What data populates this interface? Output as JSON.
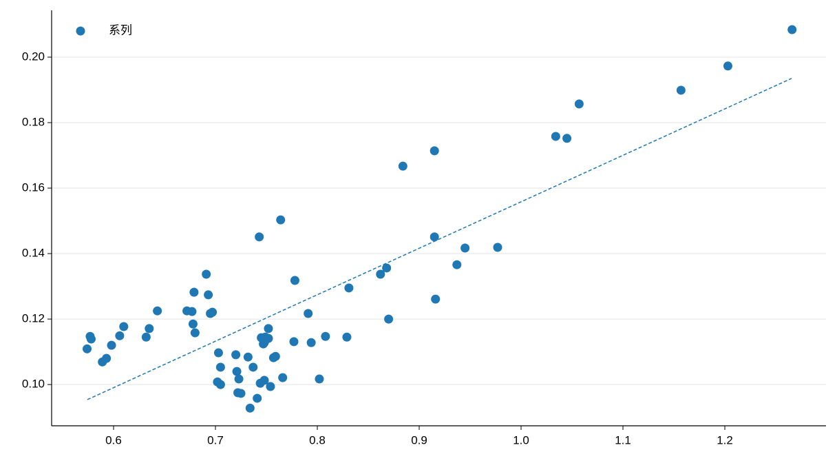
{
  "chart_data": {
    "type": "scatter",
    "series": [
      {
        "name": "系列",
        "color": "#1f77b4",
        "x": [
          0.574,
          0.577,
          0.578,
          0.589,
          0.593,
          0.598,
          0.606,
          0.61,
          0.632,
          0.635,
          0.643,
          0.672,
          0.677,
          0.678,
          0.679,
          0.68,
          0.691,
          0.693,
          0.695,
          0.697,
          0.703,
          0.702,
          0.705,
          0.705,
          0.72,
          0.721,
          0.723,
          0.722,
          0.725,
          0.732,
          0.734,
          0.737,
          0.741,
          0.743,
          0.744,
          0.745,
          0.747,
          0.748,
          0.748,
          0.749,
          0.752,
          0.752,
          0.754,
          0.757,
          0.759,
          0.764,
          0.766,
          0.778,
          0.777,
          0.791,
          0.794,
          0.802,
          0.808,
          0.829,
          0.831,
          0.862,
          0.868,
          0.87,
          0.884,
          0.915,
          0.915,
          0.916,
          0.937,
          0.945,
          0.977,
          1.034,
          1.045,
          1.057,
          1.157,
          1.203,
          1.266
        ],
        "values": [
          0.1109,
          0.1147,
          0.1139,
          0.1069,
          0.108,
          0.112,
          0.1149,
          0.1177,
          0.1145,
          0.1171,
          0.1225,
          0.1225,
          0.1223,
          0.1185,
          0.1282,
          0.1158,
          0.1337,
          0.1274,
          0.1217,
          0.1221,
          0.1097,
          0.1008,
          0.1053,
          0.1,
          0.1091,
          0.104,
          0.1017,
          0.0975,
          0.0973,
          0.1084,
          0.0928,
          0.1053,
          0.0958,
          0.1451,
          0.1004,
          0.1143,
          0.1124,
          0.1128,
          0.1013,
          0.1145,
          0.1141,
          0.1171,
          0.0994,
          0.1082,
          0.1086,
          0.1503,
          0.1021,
          0.1318,
          0.1131,
          0.1217,
          0.1128,
          0.1017,
          0.1147,
          0.1145,
          0.1295,
          0.1337,
          0.1356,
          0.12,
          0.1667,
          0.1714,
          0.1451,
          0.1261,
          0.1366,
          0.1417,
          0.1419,
          0.1758,
          0.1752,
          0.1857,
          0.1899,
          0.1973,
          0.2084
        ]
      }
    ],
    "trendline": {
      "x": [
        0.5743,
        1.2655
      ],
      "values": [
        0.0954,
        0.1935
      ],
      "color": "#1f77b4"
    },
    "xlim": [
      0.5392,
      1.2993
    ],
    "ylim": [
      0.0874,
      0.2143
    ],
    "xticks": [
      0.6,
      0.7,
      0.8,
      0.9,
      {
        "value": 1.0,
        "label": "1.0"
      },
      1.1,
      1.2
    ],
    "yticks": [
      {
        "value": 0.1,
        "label": "0.10"
      },
      {
        "value": 0.12,
        "label": "0.12"
      },
      {
        "value": 0.14,
        "label": "0.14"
      },
      {
        "value": 0.16,
        "label": "0.16"
      },
      {
        "value": 0.18,
        "label": "0.18"
      },
      {
        "value": 0.2,
        "label": "0.20"
      }
    ],
    "grid": "y",
    "legend": "upper left"
  }
}
